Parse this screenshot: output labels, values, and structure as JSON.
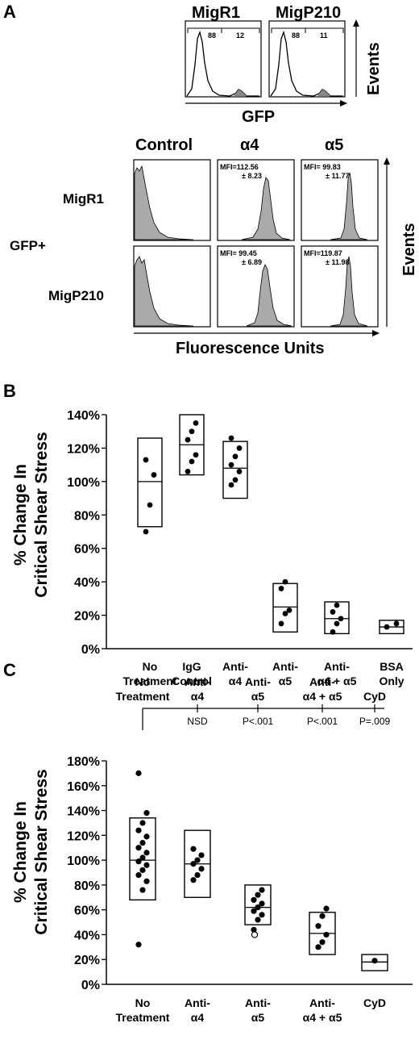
{
  "panel_labels": [
    "A",
    "B",
    "C"
  ],
  "panel_a": {
    "top_titles": [
      "MigR1",
      "MigP210"
    ],
    "top_gates": [
      {
        "left": "88",
        "right": "12"
      },
      {
        "left": "88",
        "right": "11"
      }
    ],
    "top_xlabel": "GFP",
    "top_ylabel": "Events",
    "col_headers": [
      "Control",
      "α4",
      "α5"
    ],
    "row_labels": [
      "MigR1",
      "MigP210"
    ],
    "side_label": "GFP+",
    "mfi": [
      {
        "row": 0,
        "col": 1,
        "line1": "MFI=112.56",
        "line2": "± 8.23"
      },
      {
        "row": 0,
        "col": 2,
        "line1": "MFI= 99.83",
        "line2": "± 11.77"
      },
      {
        "row": 1,
        "col": 1,
        "line1": "MFI= 99.45",
        "line2": "± 6.89"
      },
      {
        "row": 1,
        "col": 2,
        "line1": "MFI=119.87",
        "line2": "± 11.98"
      }
    ],
    "xlabel": "Fluorescence Units",
    "ylabel": "Events"
  },
  "chart_data": [
    {
      "type": "scatter",
      "panel": "B",
      "ylabel": "% Change In Critical Shear Stress",
      "ylim": [
        0,
        140
      ],
      "yticks": [
        "0%",
        "20%",
        "40%",
        "60%",
        "80%",
        "100%",
        "120%",
        "140%"
      ],
      "categories": [
        {
          "line1": "No",
          "line2": "Treatment"
        },
        {
          "line1": "IgG",
          "line2": "Control"
        },
        {
          "line1": "Anti-",
          "line2": "α4"
        },
        {
          "line1": "Anti-",
          "line2": "α5"
        },
        {
          "line1": "Anti-",
          "line2": "α4 + α5"
        },
        {
          "line1": "BSA",
          "line2": "Only"
        }
      ],
      "boxes": [
        {
          "low": 73,
          "high": 126,
          "mean": 100
        },
        {
          "low": 104,
          "high": 140,
          "mean": 122
        },
        {
          "low": 90,
          "high": 124,
          "mean": 108
        },
        {
          "low": 10,
          "high": 39,
          "mean": 25
        },
        {
          "low": 9,
          "high": 28,
          "mean": 18
        },
        {
          "low": 9,
          "high": 17,
          "mean": 13
        }
      ],
      "points": [
        [
          70,
          86,
          104,
          113
        ],
        [
          106,
          112,
          116,
          125,
          130,
          135
        ],
        [
          98,
          101,
          106,
          110,
          115,
          120,
          126
        ],
        [
          15,
          21,
          23,
          36,
          40
        ],
        [
          10,
          15,
          18,
          22,
          26
        ],
        [
          13,
          15
        ]
      ]
    },
    {
      "type": "scatter",
      "panel": "C",
      "ylabel": "% Change In Critical Shear Stress",
      "ylim": [
        0,
        180
      ],
      "yticks": [
        "0%",
        "20%",
        "40%",
        "60%",
        "80%",
        "100%",
        "120%",
        "140%",
        "160%",
        "180%"
      ],
      "categories": [
        {
          "line1": "No",
          "line2": "Treatment"
        },
        {
          "line1": "Anti-",
          "line2": "α4"
        },
        {
          "line1": "Anti-",
          "line2": "α5"
        },
        {
          "line1": "Anti-",
          "line2": "α4 + α5"
        },
        {
          "line1": "CyD",
          "line2": ""
        }
      ],
      "boxes": [
        {
          "low": 68,
          "high": 134,
          "mean": 100
        },
        {
          "low": 70,
          "high": 124,
          "mean": 97
        },
        {
          "low": 48,
          "high": 80,
          "mean": 62
        },
        {
          "low": 24,
          "high": 58,
          "mean": 41
        },
        {
          "low": 11,
          "high": 24,
          "mean": 18
        }
      ],
      "points": [
        [
          32,
          76,
          83,
          88,
          92,
          96,
          99,
          102,
          106,
          110,
          114,
          119,
          124,
          130,
          138,
          170
        ],
        [
          84,
          88,
          93,
          97,
          100,
          104,
          109
        ],
        [
          44,
          52,
          56,
          59,
          62,
          65,
          68,
          72,
          76
        ],
        [
          30,
          34,
          40,
          47,
          55,
          61
        ],
        [
          19
        ]
      ],
      "open_points": [
        [],
        [],
        [
          40
        ],
        [],
        []
      ],
      "comparison": {
        "header": [
          {
            "line1": "No",
            "line2": "Treatment"
          },
          {
            "line1": "Anti-",
            "line2": "α4"
          },
          {
            "line1": "Anti-",
            "line2": "α5"
          },
          {
            "line1": "Anti-",
            "line2": "α4 + α5"
          },
          {
            "line1": "",
            "line2": "CyD"
          }
        ],
        "pvalues": [
          "NSD",
          "P<.001",
          "P<.001",
          "P=.009"
        ]
      }
    }
  ]
}
